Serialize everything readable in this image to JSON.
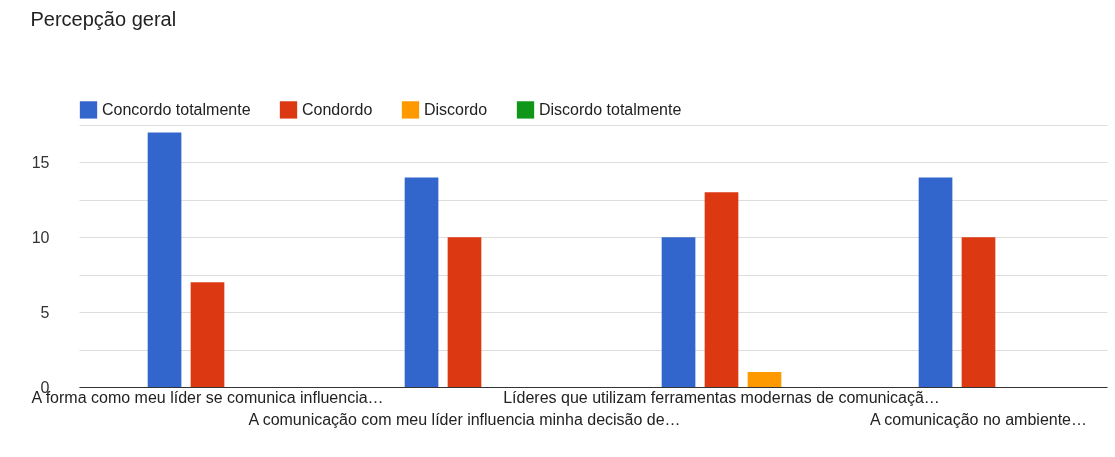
{
  "chart_data": {
    "type": "bar",
    "title": "Percepção geral",
    "categories": [
      "A forma como meu líder se comunica influencia…",
      "A comunicação com meu líder influencia minha decisão de…",
      "Líderes que utilizam ferramentas modernas de comunicaçã…",
      "A comunicação no ambiente…"
    ],
    "series": [
      {
        "name": "Concordo totalmente",
        "color": "#3366cc",
        "values": [
          17,
          14,
          10,
          14
        ]
      },
      {
        "name": "Condordo",
        "color": "#dc3912",
        "values": [
          7,
          10,
          13,
          10
        ]
      },
      {
        "name": "Discordo",
        "color": "#ff9900",
        "values": [
          0,
          0,
          1,
          0
        ]
      },
      {
        "name": "Discordo totalmente",
        "color": "#109618",
        "values": [
          0,
          0,
          0,
          0
        ]
      }
    ],
    "ylim": [
      0,
      17.5
    ],
    "yticks": [
      0,
      {
        "value": 2.5,
        "label": null
      },
      5,
      {
        "value": 7.5,
        "label": null
      },
      10,
      {
        "value": 12.5,
        "label": null
      },
      15,
      {
        "value": 17.5,
        "label": null
      }
    ],
    "grid": true,
    "legend": "top left"
  }
}
